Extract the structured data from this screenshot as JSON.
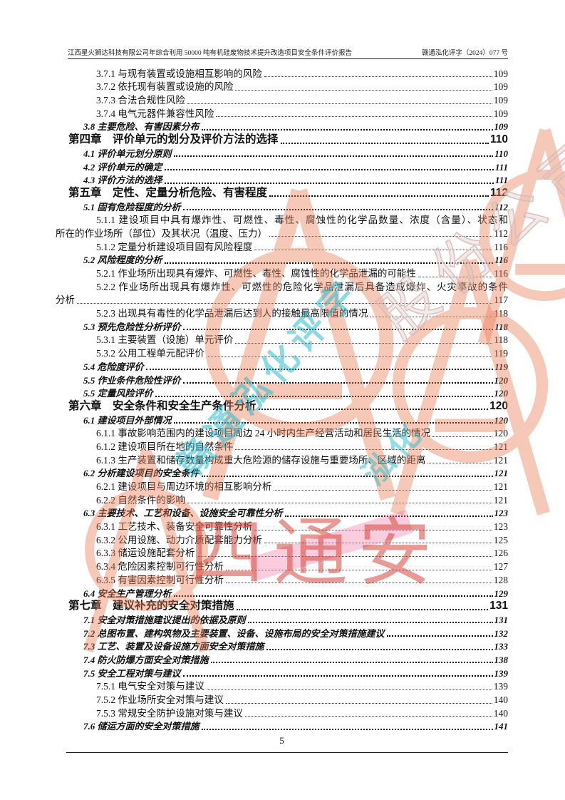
{
  "header": {
    "left": "江西星火狮达科技有限公司年综合利用 50000 吨有机硅废物技术提升改造项目安全条件评价报告",
    "right": "赣通泓化评字（2024）077 号"
  },
  "footer": {
    "page_number": "5"
  },
  "toc": {
    "rows": [
      {
        "level": 3,
        "indent": 3,
        "text": "3.7.1 与现有装置或设施相互影响的风险",
        "page": "109"
      },
      {
        "level": 3,
        "indent": 3,
        "text": "3.7.2 依托现有装置或设施的风险",
        "page": "109"
      },
      {
        "level": 3,
        "indent": 3,
        "text": "3.7.3 合法合规性风险",
        "page": "109"
      },
      {
        "level": 3,
        "indent": 3,
        "text": "3.7.4 电气元器件兼容性风险",
        "page": "109"
      },
      {
        "level": 2,
        "indent": 2,
        "text": "3.8 主要危险、有害因素分布",
        "page": "109"
      },
      {
        "level": 1,
        "indent": 1,
        "text": "第四章　评价单元的划分及评价方法的选择",
        "page": "110"
      },
      {
        "level": 2,
        "indent": 2,
        "text": "4.1 评价单元划分原则",
        "page": "110"
      },
      {
        "level": 2,
        "indent": 2,
        "text": "4.2 评价单元的确定",
        "page": "111"
      },
      {
        "level": 2,
        "indent": 2,
        "text": "4.3 评价方法的选择",
        "page": "111"
      },
      {
        "level": 1,
        "indent": 1,
        "text": "第五章　定性、定量分析危险、有害程度",
        "page": "112"
      },
      {
        "level": 2,
        "indent": 2,
        "text": "5.1 固有危险程度的分析",
        "page": "112"
      },
      {
        "level": 3,
        "indent": 3,
        "text": "5.1.1 建设项目中具有爆炸性、可燃性、毒性、腐蚀性的化学品数量、浓度（含量）、状态和",
        "page": "",
        "wrap": true
      },
      {
        "level": 3,
        "indent": 0,
        "text": "所在的作业场所（部位）及其状况（温度、压力）",
        "page": "112"
      },
      {
        "level": 3,
        "indent": 3,
        "text": "5.1.2 定量分析建设项目固有风险程度",
        "page": "116"
      },
      {
        "level": 2,
        "indent": 2,
        "text": "5.2 风险程度的分析",
        "page": "116"
      },
      {
        "level": 3,
        "indent": 3,
        "text": "5.2.1 作业场所出现具有爆炸、可燃性、毒性、腐蚀性的化学品泄漏的可能性",
        "page": "116"
      },
      {
        "level": 3,
        "indent": 3,
        "text": "5.2.2 作业场所出现具有爆炸性、可燃性的危险化学品泄漏后具备造成爆炸、火灾事故的条件",
        "page": "",
        "wrap": true
      },
      {
        "level": 3,
        "indent": 0,
        "text": "分析",
        "page": "117"
      },
      {
        "level": 3,
        "indent": 3,
        "text": "5.2.3 出现具有毒性的化学品泄漏后达到人的接触最高限值的情况",
        "page": "118"
      },
      {
        "level": 2,
        "indent": 2,
        "text": "5.3 预先危险性分析评价",
        "page": "118"
      },
      {
        "level": 3,
        "indent": 3,
        "text": "5.3.1 主要装置（设施）单元评价",
        "page": "118"
      },
      {
        "level": 3,
        "indent": 3,
        "text": "5.3.2 公用工程单元配评价",
        "page": "119"
      },
      {
        "level": 2,
        "indent": 2,
        "text": "5.4 危险度评价",
        "page": "119"
      },
      {
        "level": 2,
        "indent": 2,
        "text": "5.5 作业条件危险性评价",
        "page": "120"
      },
      {
        "level": 2,
        "indent": 2,
        "text": "5.5 定量风险评价",
        "page": "120"
      },
      {
        "level": 1,
        "indent": 1,
        "text": "第六章　安全条件和安全生产条件分析",
        "page": "120"
      },
      {
        "level": 2,
        "indent": 2,
        "text": "6.1 建设项目外部情况",
        "page": "120"
      },
      {
        "level": 3,
        "indent": 3,
        "text": "6.1.1 事故影响范围内的建设项目周边 24 小时内生产经营活动和居民生活的情况",
        "page": "120"
      },
      {
        "level": 3,
        "indent": 3,
        "text": "6.1.2 建设项目所在地的自然条件",
        "page": "121"
      },
      {
        "level": 3,
        "indent": 3,
        "text": "6.1.3 生产装置和储存数量构成重大危险源的储存设施与重要场所、区域的距离",
        "page": "121"
      },
      {
        "level": 2,
        "indent": 2,
        "text": "6.2 分析建设项目的安全条件",
        "page": "121"
      },
      {
        "level": 3,
        "indent": 3,
        "text": "6.2.1 建设项目与周边环境的相互影响分析",
        "page": "121"
      },
      {
        "level": 3,
        "indent": 3,
        "text": "6.2.2 自然条件的影响",
        "page": "121"
      },
      {
        "level": 2,
        "indent": 2,
        "text": "6.3 主要技术、工艺和设备、设施安全可靠性分析",
        "page": "123"
      },
      {
        "level": 3,
        "indent": 3,
        "text": "6.3.1 工艺技术、装备安全可靠性分析",
        "page": "123"
      },
      {
        "level": 3,
        "indent": 3,
        "text": "6.3.2 公用设施、动力介质配套能力分析",
        "page": "125"
      },
      {
        "level": 3,
        "indent": 3,
        "text": "6.3.3 储运设施配套分析",
        "page": "126"
      },
      {
        "level": 3,
        "indent": 3,
        "text": "6.3.4 危险因素控制可行性分析",
        "page": "127"
      },
      {
        "level": 3,
        "indent": 3,
        "text": "6.3.5 有害因素控制可行性分析",
        "page": "128"
      },
      {
        "level": 2,
        "indent": 2,
        "text": "6.4 安全生产管理分析",
        "page": "129"
      },
      {
        "level": 1,
        "indent": 1,
        "text": "第七章　建议补充的安全对策措施",
        "page": "131"
      },
      {
        "level": 2,
        "indent": 2,
        "text": "7.1 安全对策措施建议提出的依据及原则",
        "page": "131"
      },
      {
        "level": 2,
        "indent": 2,
        "text": "7.2 总图布置、建构筑物及主要装置、设备、设施布局的安全对策措施建议",
        "page": "132"
      },
      {
        "level": 2,
        "indent": 2,
        "text": "7.3 工艺、装置及设备设施方面安全对策措施",
        "page": "133"
      },
      {
        "level": 2,
        "indent": 2,
        "text": "7.4 防火防爆方面安全对策措施",
        "page": "138"
      },
      {
        "level": 2,
        "indent": 2,
        "text": "7.5 安全工程对策与建议",
        "page": "139"
      },
      {
        "level": 3,
        "indent": 3,
        "text": "7.5.1 电气安全对策与建议",
        "page": "139"
      },
      {
        "level": 3,
        "indent": 3,
        "text": "7.5.2 作业场所安全对策与建议",
        "page": "140"
      },
      {
        "level": 3,
        "indent": 3,
        "text": "7.5.3 常规安全防护设施对策与建议",
        "page": "140"
      },
      {
        "level": 2,
        "indent": 2,
        "text": "7.6 储运方面的安全对策措施",
        "page": "141"
      }
    ]
  },
  "watermarks": {
    "big_red_text": "四通安",
    "cyan_text": "赣通泓化评字",
    "cyan_text_2": "泓化",
    "outline_text": "股份公司",
    "colors": {
      "salmon_seal": "#ec7e56",
      "red_text": "#d5463a",
      "cyan_text": "#2cbace",
      "outline_text": "#d6b9b4",
      "pink_band": "#f378a5"
    }
  }
}
